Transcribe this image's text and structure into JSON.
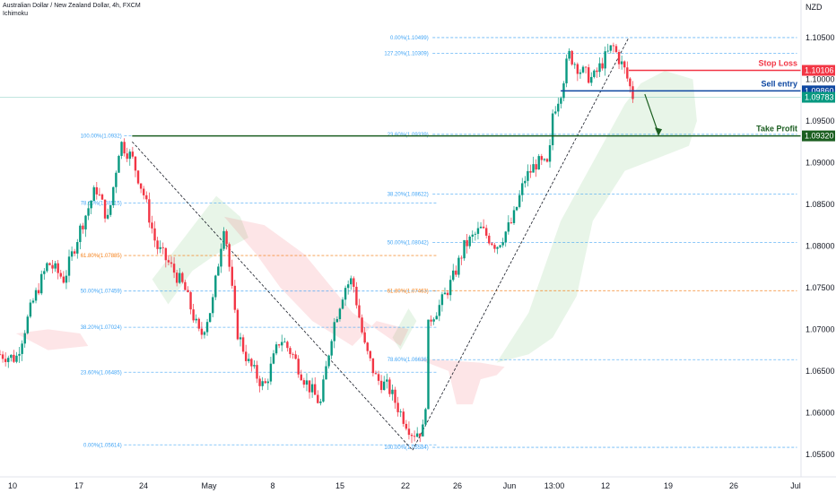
{
  "header": {
    "symbol": "Australian Dollar / New Zealand Dollar, 4h, FXCM",
    "indicator": "Ichimoku",
    "currency": "NZD"
  },
  "chart_data": {
    "type": "candlestick",
    "y_ticks": [
      "1.10500",
      "1.10000",
      "1.09500",
      "1.09000",
      "1.08500",
      "1.08000",
      "1.07500",
      "1.07000",
      "1.06500",
      "1.06000",
      "1.05500"
    ],
    "y_tick_values": [
      1.105,
      1.1,
      1.095,
      1.09,
      1.085,
      1.08,
      1.075,
      1.07,
      1.065,
      1.06,
      1.055
    ],
    "x_labels": [
      "10",
      "17",
      "24",
      "May",
      "8",
      "15",
      "22",
      "26",
      "Jun",
      "13:00",
      "12",
      "19",
      "26",
      "Jul"
    ],
    "fib_left": [
      {
        "label": "100.00%(1.0932)",
        "value": 1.0932
      },
      {
        "label": "78.60%(1.08515)",
        "value": 1.08515
      },
      {
        "label": "61.80%(1.07885)",
        "value": 1.07885
      },
      {
        "label": "50.00%(1.07459)",
        "value": 1.07459
      },
      {
        "label": "38.20%(1.07024)",
        "value": 1.07024
      },
      {
        "label": "23.60%(1.06485)",
        "value": 1.06485
      },
      {
        "label": "0.00%(1.05614)",
        "value": 1.05614
      }
    ],
    "fib_right": [
      {
        "label": "0.00%(1.10499)",
        "value": 1.10499
      },
      {
        "label": "127.20%(1.10309)",
        "value": 1.10309
      },
      {
        "label": "23.60%(1.09339)",
        "value": 1.09339
      },
      {
        "label": "38.20%(1.08622)",
        "value": 1.08622
      },
      {
        "label": "50.00%(1.08042)",
        "value": 1.08042
      },
      {
        "label": "61.80%(1.07463)",
        "value": 1.07463
      },
      {
        "label": "78.60%(1.06636)",
        "value": 1.06636
      },
      {
        "label": "100.00%(1.05584)",
        "value": 1.05584
      }
    ],
    "levels": {
      "stop_loss": {
        "label": "Stop Loss",
        "value": 1.10106,
        "badge": "1.10106",
        "color": "#f23645"
      },
      "sell_entry": {
        "label": "Sell entry",
        "value": 1.0986,
        "badge": "1.09860",
        "color": "#0d47a1"
      },
      "current": {
        "value": 1.09783,
        "badge": "1.09783",
        "color": "#089981"
      },
      "take_profit": {
        "label": "Take Profit",
        "value": 1.0932,
        "badge": "1.09320",
        "color": "#1b5e20"
      }
    },
    "price_path": [
      [
        0.0,
        1.067
      ],
      [
        0.02,
        1.0665
      ],
      [
        0.04,
        1.073
      ],
      [
        0.06,
        1.078
      ],
      [
        0.08,
        1.076
      ],
      [
        0.1,
        1.082
      ],
      [
        0.12,
        1.087
      ],
      [
        0.135,
        1.083
      ],
      [
        0.15,
        1.0925
      ],
      [
        0.165,
        1.0905
      ],
      [
        0.18,
        1.086
      ],
      [
        0.195,
        1.08
      ],
      [
        0.21,
        1.078
      ],
      [
        0.23,
        1.075
      ],
      [
        0.25,
        1.069
      ],
      [
        0.265,
        1.073
      ],
      [
        0.28,
        1.083
      ],
      [
        0.295,
        1.07
      ],
      [
        0.31,
        1.066
      ],
      [
        0.33,
        1.063
      ],
      [
        0.35,
        1.069
      ],
      [
        0.365,
        1.067
      ],
      [
        0.38,
        1.064
      ],
      [
        0.4,
        1.061
      ],
      [
        0.415,
        1.07
      ],
      [
        0.43,
        1.075
      ],
      [
        0.44,
        1.076
      ],
      [
        0.455,
        1.068
      ],
      [
        0.47,
        1.064
      ],
      [
        0.485,
        1.063
      ],
      [
        0.5,
        1.06
      ],
      [
        0.515,
        1.0575
      ],
      [
        0.53,
        1.058
      ],
      [
        0.535,
        1.071
      ],
      [
        0.55,
        1.073
      ],
      [
        0.565,
        1.076
      ],
      [
        0.58,
        1.08
      ],
      [
        0.6,
        1.082
      ],
      [
        0.62,
        1.08
      ],
      [
        0.64,
        1.083
      ],
      [
        0.655,
        1.088
      ],
      [
        0.67,
        1.09
      ],
      [
        0.685,
        1.0895
      ],
      [
        0.69,
        1.096
      ],
      [
        0.7,
        1.0985
      ],
      [
        0.71,
        1.103
      ],
      [
        0.725,
        1.101
      ],
      [
        0.74,
        1.1
      ],
      [
        0.755,
        1.1025
      ],
      [
        0.765,
        1.104
      ],
      [
        0.78,
        1.101
      ],
      [
        0.79,
        1.098
      ]
    ]
  }
}
